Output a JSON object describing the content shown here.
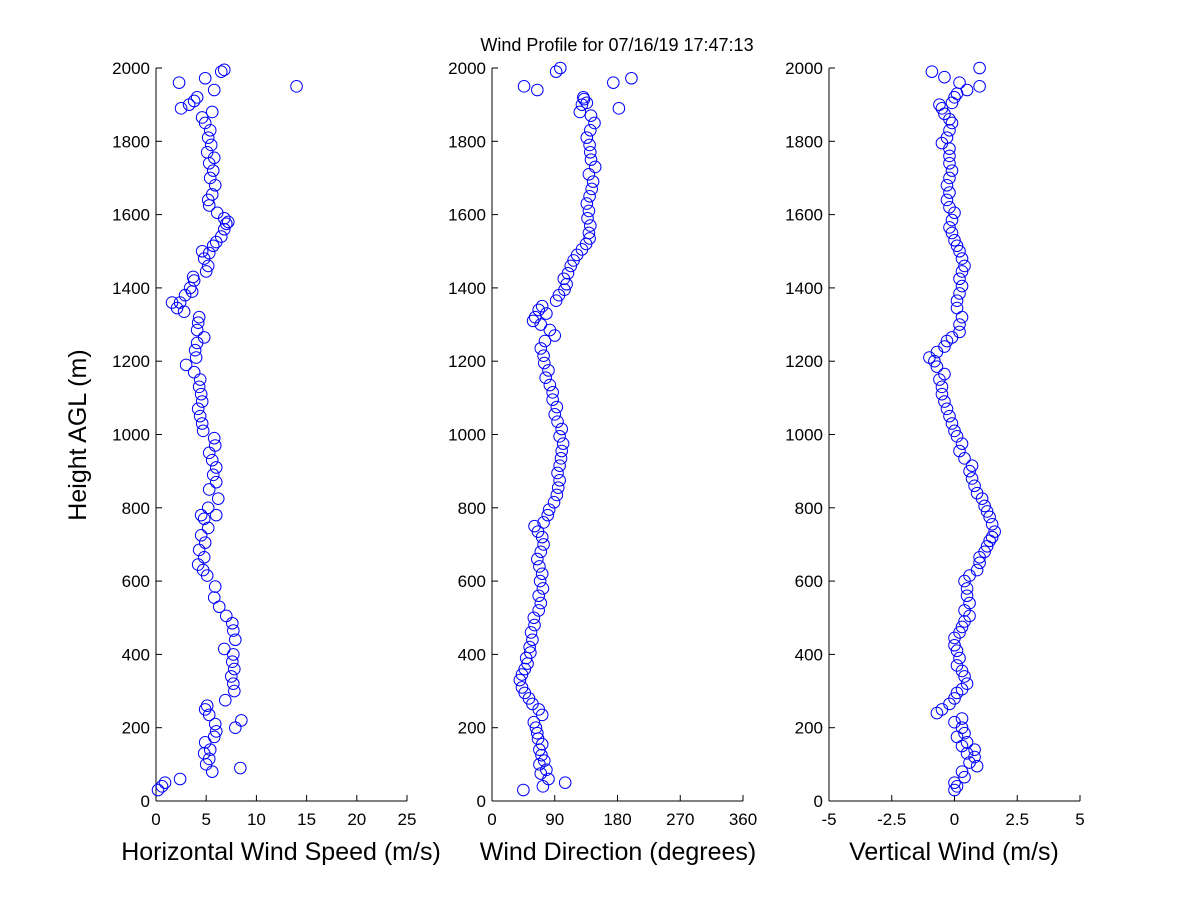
{
  "title": "Wind Profile for  07/16/19 17:47:13",
  "ylabel": "Height AGL (m)",
  "colors": {
    "marker": "#0000ff",
    "axes": "#000000",
    "background": "#ffffff"
  },
  "chart_data": [
    {
      "type": "scatter",
      "xlabel": "Horizontal Wind Speed (m/s)",
      "xlim": [
        0,
        25
      ],
      "ylim": [
        0,
        2000
      ],
      "xticks": [
        "0",
        "5",
        "10",
        "15",
        "20",
        "25"
      ],
      "yticks": [
        "0",
        "200",
        "400",
        "600",
        "800",
        "1000",
        "1200",
        "1400",
        "1600",
        "1800",
        "2000"
      ],
      "grid": false,
      "points": [
        [
          0.2,
          30
        ],
        [
          0.6,
          40
        ],
        [
          0.9,
          50
        ],
        [
          2.4,
          60
        ],
        [
          5.6,
          80
        ],
        [
          8.4,
          90
        ],
        [
          5.0,
          100
        ],
        [
          5.3,
          115
        ],
        [
          4.8,
          130
        ],
        [
          5.4,
          140
        ],
        [
          4.9,
          160
        ],
        [
          5.8,
          175
        ],
        [
          6.0,
          190
        ],
        [
          7.9,
          200
        ],
        [
          5.9,
          210
        ],
        [
          8.5,
          220
        ],
        [
          5.3,
          235
        ],
        [
          4.9,
          250
        ],
        [
          5.1,
          260
        ],
        [
          6.9,
          275
        ],
        [
          7.8,
          300
        ],
        [
          7.7,
          320
        ],
        [
          7.5,
          340
        ],
        [
          7.8,
          360
        ],
        [
          7.6,
          380
        ],
        [
          7.7,
          400
        ],
        [
          6.8,
          415
        ],
        [
          7.9,
          440
        ],
        [
          7.7,
          465
        ],
        [
          7.6,
          485
        ],
        [
          7.0,
          505
        ],
        [
          6.3,
          530
        ],
        [
          5.8,
          555
        ],
        [
          5.9,
          585
        ],
        [
          5.1,
          615
        ],
        [
          4.7,
          630
        ],
        [
          4.2,
          645
        ],
        [
          4.8,
          665
        ],
        [
          4.3,
          685
        ],
        [
          4.9,
          705
        ],
        [
          4.5,
          725
        ],
        [
          5.2,
          745
        ],
        [
          4.8,
          770
        ],
        [
          6.0,
          780
        ],
        [
          4.5,
          780
        ],
        [
          5.2,
          800
        ],
        [
          6.2,
          825
        ],
        [
          5.3,
          850
        ],
        [
          6.0,
          870
        ],
        [
          5.7,
          890
        ],
        [
          6.0,
          910
        ],
        [
          5.6,
          930
        ],
        [
          5.3,
          950
        ],
        [
          5.9,
          970
        ],
        [
          5.8,
          990
        ],
        [
          4.7,
          1010
        ],
        [
          4.6,
          1030
        ],
        [
          4.4,
          1050
        ],
        [
          4.2,
          1070
        ],
        [
          4.6,
          1090
        ],
        [
          4.5,
          1110
        ],
        [
          4.3,
          1130
        ],
        [
          4.4,
          1150
        ],
        [
          3.8,
          1170
        ],
        [
          3.0,
          1190
        ],
        [
          4.0,
          1210
        ],
        [
          3.9,
          1230
        ],
        [
          4.1,
          1250
        ],
        [
          4.8,
          1265
        ],
        [
          4.1,
          1285
        ],
        [
          4.2,
          1305
        ],
        [
          4.3,
          1320
        ],
        [
          2.8,
          1335
        ],
        [
          2.1,
          1345
        ],
        [
          2.4,
          1360
        ],
        [
          1.6,
          1360
        ],
        [
          2.9,
          1380
        ],
        [
          3.6,
          1390
        ],
        [
          3.4,
          1400
        ],
        [
          3.8,
          1420
        ],
        [
          3.7,
          1430
        ],
        [
          5.0,
          1445
        ],
        [
          5.2,
          1460
        ],
        [
          4.8,
          1480
        ],
        [
          5.3,
          1495
        ],
        [
          4.6,
          1500
        ],
        [
          5.7,
          1515
        ],
        [
          6.0,
          1525
        ],
        [
          6.5,
          1540
        ],
        [
          6.8,
          1560
        ],
        [
          7.0,
          1575
        ],
        [
          7.2,
          1580
        ],
        [
          6.8,
          1590
        ],
        [
          6.1,
          1605
        ],
        [
          5.3,
          1625
        ],
        [
          5.2,
          1640
        ],
        [
          5.6,
          1655
        ],
        [
          5.9,
          1680
        ],
        [
          5.4,
          1700
        ],
        [
          5.7,
          1720
        ],
        [
          5.3,
          1740
        ],
        [
          5.8,
          1755
        ],
        [
          5.1,
          1770
        ],
        [
          5.5,
          1790
        ],
        [
          5.2,
          1810
        ],
        [
          5.4,
          1830
        ],
        [
          4.9,
          1850
        ],
        [
          4.6,
          1865
        ],
        [
          5.6,
          1880
        ],
        [
          2.5,
          1890
        ],
        [
          3.3,
          1900
        ],
        [
          4.1,
          1920
        ],
        [
          3.8,
          1910
        ],
        [
          5.8,
          1940
        ],
        [
          14.0,
          1950
        ],
        [
          2.3,
          1960
        ],
        [
          4.9,
          1972
        ],
        [
          6.8,
          1995
        ],
        [
          6.5,
          1990
        ]
      ]
    },
    {
      "type": "scatter",
      "xlabel": "Wind Direction (degrees)",
      "xlim": [
        0,
        360
      ],
      "ylim": [
        0,
        2000
      ],
      "xticks": [
        "0",
        "90",
        "180",
        "270",
        "360"
      ],
      "yticks": [
        "0",
        "200",
        "400",
        "600",
        "800",
        "1000",
        "1200",
        "1400",
        "1600",
        "1800",
        "2000"
      ],
      "grid": false,
      "points": [
        [
          45,
          30
        ],
        [
          73,
          40
        ],
        [
          105,
          50
        ],
        [
          81,
          60
        ],
        [
          70,
          75
        ],
        [
          78,
          85
        ],
        [
          68,
          100
        ],
        [
          75,
          110
        ],
        [
          71,
          125
        ],
        [
          68,
          140
        ],
        [
          72,
          155
        ],
        [
          66,
          170
        ],
        [
          65,
          185
        ],
        [
          63,
          200
        ],
        [
          60,
          215
        ],
        [
          72,
          235
        ],
        [
          67,
          250
        ],
        [
          58,
          265
        ],
        [
          53,
          280
        ],
        [
          47,
          295
        ],
        [
          43,
          310
        ],
        [
          40,
          330
        ],
        [
          43,
          345
        ],
        [
          47,
          360
        ],
        [
          51,
          375
        ],
        [
          49,
          390
        ],
        [
          55,
          405
        ],
        [
          54,
          420
        ],
        [
          58,
          440
        ],
        [
          56,
          460
        ],
        [
          61,
          480
        ],
        [
          60,
          500
        ],
        [
          67,
          520
        ],
        [
          70,
          540
        ],
        [
          67,
          560
        ],
        [
          73,
          580
        ],
        [
          69,
          600
        ],
        [
          72,
          620
        ],
        [
          68,
          640
        ],
        [
          65,
          660
        ],
        [
          70,
          680
        ],
        [
          74,
          700
        ],
        [
          72,
          720
        ],
        [
          66,
          735
        ],
        [
          61,
          750
        ],
        [
          74,
          760
        ],
        [
          80,
          780
        ],
        [
          82,
          795
        ],
        [
          89,
          815
        ],
        [
          93,
          835
        ],
        [
          95,
          855
        ],
        [
          97,
          875
        ],
        [
          94,
          895
        ],
        [
          97,
          915
        ],
        [
          99,
          935
        ],
        [
          100,
          955
        ],
        [
          102,
          975
        ],
        [
          97,
          995
        ],
        [
          100,
          1015
        ],
        [
          94,
          1035
        ],
        [
          90,
          1055
        ],
        [
          93,
          1075
        ],
        [
          87,
          1095
        ],
        [
          87,
          1115
        ],
        [
          83,
          1135
        ],
        [
          77,
          1155
        ],
        [
          81,
          1175
        ],
        [
          75,
          1195
        ],
        [
          74,
          1215
        ],
        [
          70,
          1235
        ],
        [
          76,
          1255
        ],
        [
          90,
          1270
        ],
        [
          83,
          1285
        ],
        [
          70,
          1300
        ],
        [
          59,
          1310
        ],
        [
          62,
          1320
        ],
        [
          78,
          1330
        ],
        [
          67,
          1340
        ],
        [
          72,
          1350
        ],
        [
          92,
          1365
        ],
        [
          96,
          1380
        ],
        [
          104,
          1395
        ],
        [
          107,
          1410
        ],
        [
          103,
          1425
        ],
        [
          109,
          1440
        ],
        [
          113,
          1460
        ],
        [
          117,
          1475
        ],
        [
          122,
          1490
        ],
        [
          129,
          1505
        ],
        [
          135,
          1520
        ],
        [
          140,
          1535
        ],
        [
          139,
          1550
        ],
        [
          141,
          1570
        ],
        [
          137,
          1590
        ],
        [
          139,
          1610
        ],
        [
          136,
          1630
        ],
        [
          140,
          1650
        ],
        [
          143,
          1670
        ],
        [
          145,
          1690
        ],
        [
          139,
          1710
        ],
        [
          148,
          1730
        ],
        [
          142,
          1750
        ],
        [
          141,
          1770
        ],
        [
          140,
          1790
        ],
        [
          136,
          1810
        ],
        [
          141,
          1830
        ],
        [
          147,
          1850
        ],
        [
          142,
          1870
        ],
        [
          126,
          1880
        ],
        [
          182,
          1890
        ],
        [
          129,
          1900
        ],
        [
          136,
          1905
        ],
        [
          132,
          1915
        ],
        [
          131,
          1920
        ],
        [
          46,
          1950
        ],
        [
          65,
          1940
        ],
        [
          174,
          1960
        ],
        [
          200,
          1972
        ],
        [
          92,
          1990
        ],
        [
          98,
          2000
        ]
      ]
    },
    {
      "type": "scatter",
      "xlabel": "Vertical Wind (m/s)",
      "xlim": [
        -5,
        5
      ],
      "ylim": [
        0,
        2000
      ],
      "xticks": [
        "-5",
        "-2.5",
        "0",
        "2.5",
        "5"
      ],
      "yticks": [
        "0",
        "200",
        "400",
        "600",
        "800",
        "1000",
        "1200",
        "1400",
        "1600",
        "1800",
        "2000"
      ],
      "grid": false,
      "points": [
        [
          0.0,
          30
        ],
        [
          0.1,
          40
        ],
        [
          0.0,
          50
        ],
        [
          0.4,
          65
        ],
        [
          0.3,
          80
        ],
        [
          0.9,
          95
        ],
        [
          0.6,
          105
        ],
        [
          0.8,
          120
        ],
        [
          0.5,
          130
        ],
        [
          0.8,
          140
        ],
        [
          0.3,
          150
        ],
        [
          0.5,
          160
        ],
        [
          0.1,
          175
        ],
        [
          0.4,
          185
        ],
        [
          0.3,
          200
        ],
        [
          0.0,
          215
        ],
        [
          0.3,
          225
        ],
        [
          -0.7,
          240
        ],
        [
          -0.5,
          250
        ],
        [
          -0.2,
          265
        ],
        [
          0.0,
          280
        ],
        [
          0.1,
          295
        ],
        [
          0.3,
          305
        ],
        [
          0.5,
          320
        ],
        [
          0.4,
          340
        ],
        [
          0.3,
          355
        ],
        [
          0.1,
          370
        ],
        [
          0.2,
          390
        ],
        [
          0.1,
          410
        ],
        [
          0.0,
          425
        ],
        [
          0.0,
          445
        ],
        [
          0.2,
          460
        ],
        [
          0.3,
          475
        ],
        [
          0.4,
          490
        ],
        [
          0.6,
          505
        ],
        [
          0.4,
          520
        ],
        [
          0.6,
          540
        ],
        [
          0.5,
          560
        ],
        [
          0.5,
          580
        ],
        [
          0.4,
          600
        ],
        [
          0.6,
          615
        ],
        [
          0.9,
          630
        ],
        [
          1.0,
          650
        ],
        [
          1.0,
          665
        ],
        [
          1.2,
          680
        ],
        [
          1.3,
          695
        ],
        [
          1.4,
          710
        ],
        [
          1.5,
          720
        ],
        [
          1.6,
          735
        ],
        [
          1.5,
          755
        ],
        [
          1.4,
          775
        ],
        [
          1.3,
          790
        ],
        [
          1.2,
          805
        ],
        [
          1.1,
          825
        ],
        [
          0.9,
          840
        ],
        [
          0.8,
          860
        ],
        [
          0.7,
          880
        ],
        [
          0.6,
          900
        ],
        [
          0.7,
          915
        ],
        [
          0.4,
          935
        ],
        [
          0.2,
          955
        ],
        [
          0.3,
          975
        ],
        [
          0.1,
          995
        ],
        [
          0.0,
          1010
        ],
        [
          -0.1,
          1030
        ],
        [
          -0.2,
          1050
        ],
        [
          -0.3,
          1070
        ],
        [
          -0.4,
          1090
        ],
        [
          -0.5,
          1110
        ],
        [
          -0.5,
          1130
        ],
        [
          -0.6,
          1150
        ],
        [
          -0.4,
          1165
        ],
        [
          -0.7,
          1185
        ],
        [
          -0.8,
          1200
        ],
        [
          -1.0,
          1210
        ],
        [
          -0.7,
          1225
        ],
        [
          -0.4,
          1240
        ],
        [
          -0.3,
          1255
        ],
        [
          -0.1,
          1265
        ],
        [
          0.2,
          1280
        ],
        [
          0.2,
          1300
        ],
        [
          0.3,
          1320
        ],
        [
          0.1,
          1345
        ],
        [
          0.1,
          1365
        ],
        [
          0.2,
          1385
        ],
        [
          0.3,
          1405
        ],
        [
          0.2,
          1425
        ],
        [
          0.3,
          1445
        ],
        [
          0.4,
          1460
        ],
        [
          0.3,
          1480
        ],
        [
          0.2,
          1500
        ],
        [
          0.1,
          1515
        ],
        [
          0.0,
          1530
        ],
        [
          -0.1,
          1550
        ],
        [
          -0.2,
          1565
        ],
        [
          -0.1,
          1585
        ],
        [
          0.0,
          1605
        ],
        [
          -0.2,
          1620
        ],
        [
          -0.3,
          1640
        ],
        [
          -0.2,
          1660
        ],
        [
          -0.3,
          1680
        ],
        [
          -0.2,
          1700
        ],
        [
          -0.1,
          1720
        ],
        [
          -0.2,
          1740
        ],
        [
          -0.2,
          1760
        ],
        [
          -0.2,
          1780
        ],
        [
          -0.5,
          1795
        ],
        [
          -0.3,
          1810
        ],
        [
          -0.2,
          1830
        ],
        [
          -0.1,
          1850
        ],
        [
          -0.2,
          1860
        ],
        [
          -0.4,
          1875
        ],
        [
          -0.5,
          1890
        ],
        [
          -0.6,
          1900
        ],
        [
          -0.1,
          1905
        ],
        [
          0.0,
          1920
        ],
        [
          0.1,
          1930
        ],
        [
          0.5,
          1940
        ],
        [
          1.0,
          1950
        ],
        [
          0.2,
          1960
        ],
        [
          -0.4,
          1975
        ],
        [
          -0.9,
          1990
        ],
        [
          1.0,
          2000
        ]
      ]
    }
  ]
}
